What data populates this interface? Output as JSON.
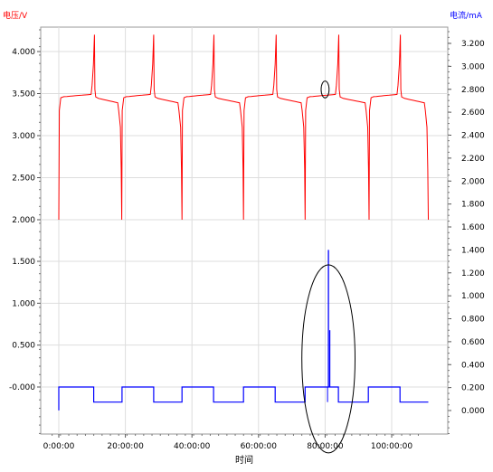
{
  "chart_data": {
    "type": "line",
    "left_axis": {
      "label": "电压/V",
      "color": "#ff0000",
      "ticks": [
        "2.000",
        "2.500",
        "3.000",
        "3.500",
        "4.000"
      ],
      "lower_ticks": [
        "-0.000",
        "0.500",
        "1.000",
        "1.500"
      ]
    },
    "right_axis": {
      "label": "电流/mA",
      "color": "#0000ff",
      "ticks": [
        "0.000",
        "0.200",
        "0.400",
        "0.600",
        "0.800",
        "1.000",
        "1.200",
        "1.400",
        "1.600",
        "1.800",
        "2.000",
        "2.200",
        "2.400",
        "2.600",
        "2.800",
        "3.000",
        "3.200"
      ]
    },
    "x_axis": {
      "label": "时间",
      "ticks": [
        "0:00:00",
        "20:00:00",
        "40:00:00",
        "60:00:00",
        "80:00:00",
        "100:00:00"
      ],
      "range_hours": [
        -2,
        112
      ]
    },
    "voltage_series": {
      "color": "#ff0000",
      "yrange": [
        2.0,
        4.25
      ],
      "cycles": [
        {
          "t_start": 0,
          "t_peak": 10.7,
          "t_end": 18.9
        },
        {
          "t_start": 18.9,
          "t_peak": 28.5,
          "t_end": 37.0
        },
        {
          "t_start": 37.0,
          "t_peak": 46.6,
          "t_end": 55.5
        },
        {
          "t_start": 55.5,
          "t_peak": 65.3,
          "t_end": 74.0
        },
        {
          "t_start": 74.0,
          "t_peak": 84.1,
          "t_end": 93.2
        },
        {
          "t_start": 93.2,
          "t_peak": 102.6,
          "t_end": 111.0
        }
      ],
      "plateau_v": 3.46,
      "peak_v": 4.2,
      "min_v": 2.0
    },
    "current_series": {
      "color": "#0000ff",
      "yrange": [
        -0.25,
        1.6
      ],
      "high": 0.0,
      "low": -0.18,
      "segments": [
        {
          "t0": 0.0,
          "t1": 10.5,
          "level": "high"
        },
        {
          "t0": 10.5,
          "t1": 19.0,
          "level": "low"
        },
        {
          "t0": 19.0,
          "t1": 28.5,
          "level": "high"
        },
        {
          "t0": 28.5,
          "t1": 37.0,
          "level": "low"
        },
        {
          "t0": 37.0,
          "t1": 46.5,
          "level": "high"
        },
        {
          "t0": 46.5,
          "t1": 55.5,
          "level": "low"
        },
        {
          "t0": 55.5,
          "t1": 65.0,
          "level": "high"
        },
        {
          "t0": 65.0,
          "t1": 74.0,
          "level": "low"
        },
        {
          "t0": 74.0,
          "t1": 84.0,
          "level": "high"
        },
        {
          "t0": 84.0,
          "t1": 93.0,
          "level": "low"
        },
        {
          "t0": 93.0,
          "t1": 102.5,
          "level": "high"
        },
        {
          "t0": 102.5,
          "t1": 111.0,
          "level": "low"
        }
      ],
      "spike": {
        "t": 81.0,
        "top": 1.4,
        "secondary": 0.7
      }
    },
    "annotations": [
      {
        "type": "ellipse",
        "t": 80.0,
        "y_series": "voltage",
        "y": 3.55,
        "rx_hours": 1.2,
        "ry_v": 0.1
      },
      {
        "type": "ellipse",
        "t": 81.0,
        "y_series": "current",
        "y": 0.45,
        "rx_hours": 8.0,
        "ry_mA": 0.82
      }
    ]
  }
}
